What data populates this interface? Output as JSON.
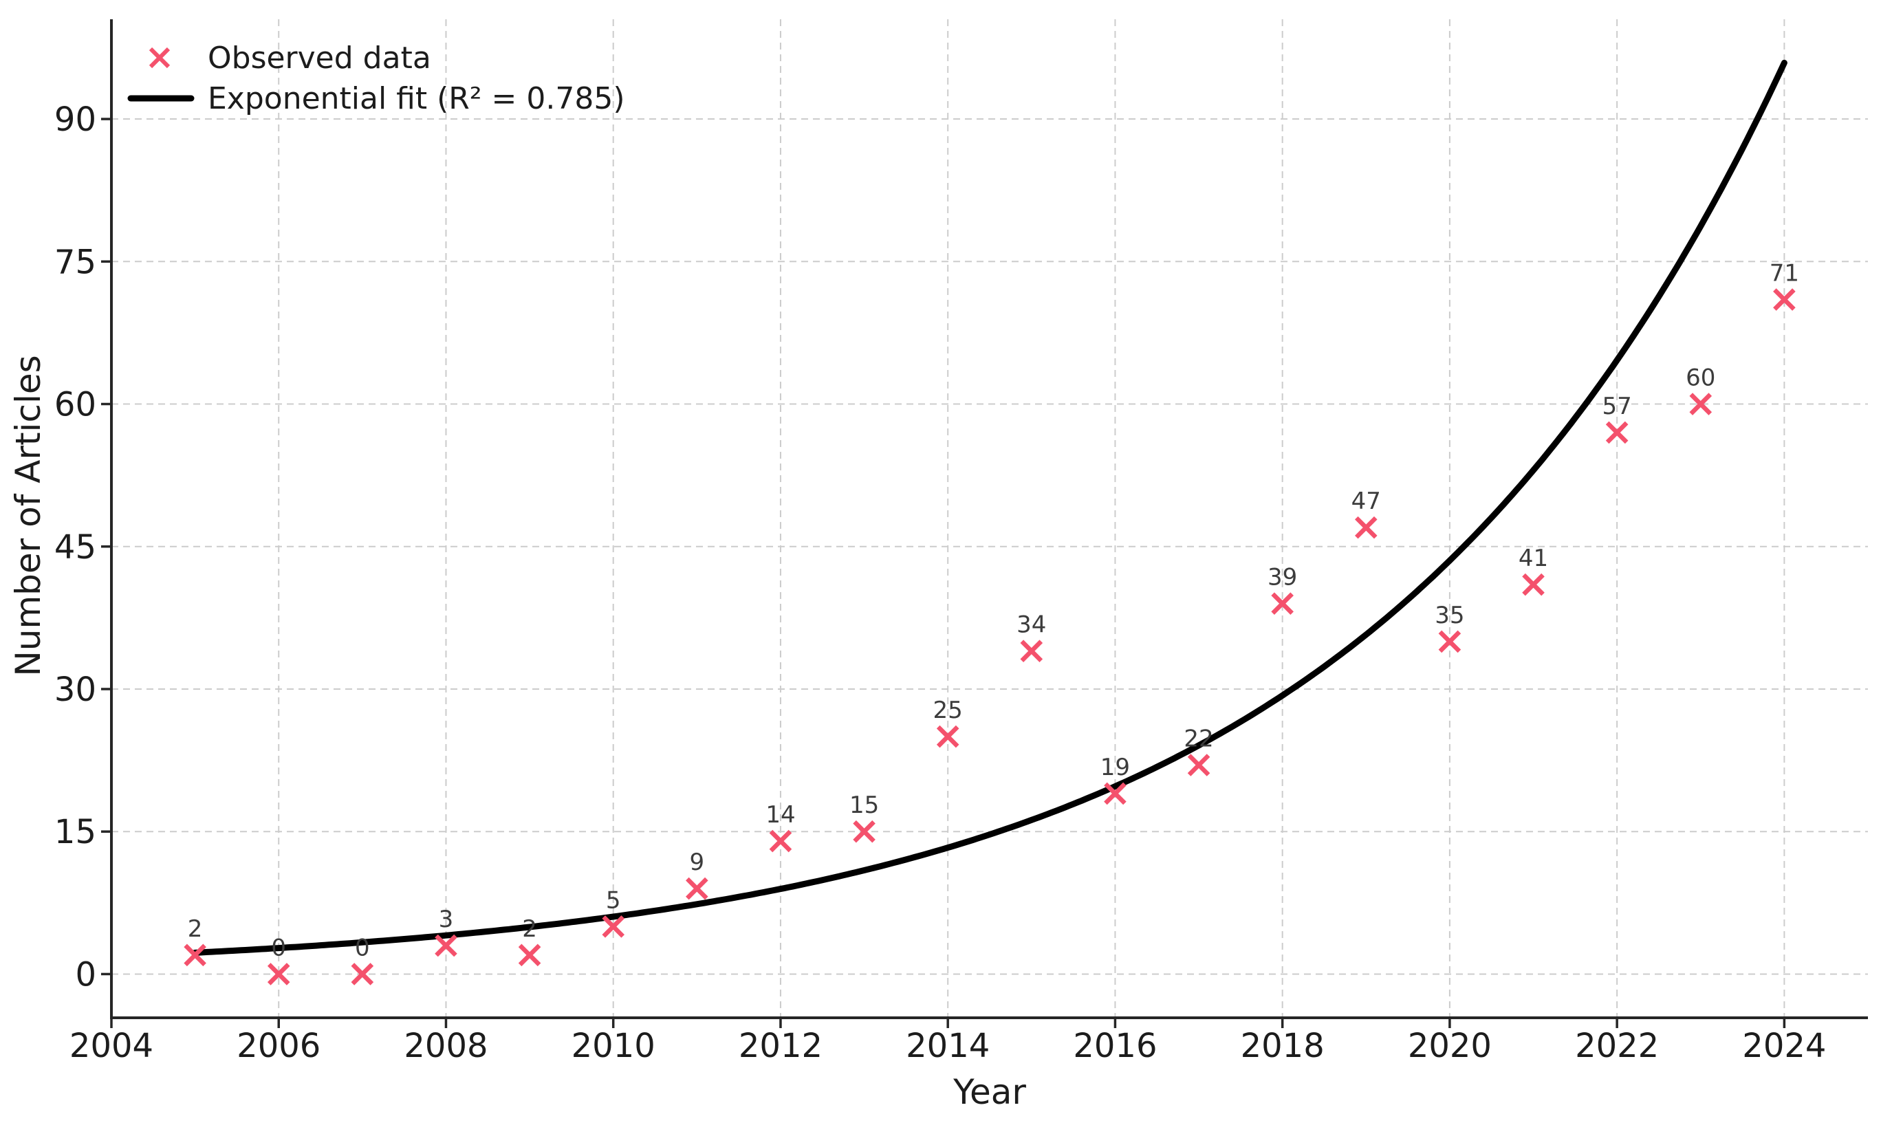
{
  "figure": {
    "background": "#ffffff"
  },
  "chart_data": {
    "type": "scatter",
    "title": "",
    "xlabel": "Year",
    "ylabel": "Number of Articles",
    "grid": true,
    "legend_position": "upper-left",
    "xlim": [
      2004,
      2025
    ],
    "ylim": [
      -4.6,
      100.5
    ],
    "xticks": [
      2004,
      2006,
      2008,
      2010,
      2012,
      2014,
      2016,
      2018,
      2020,
      2022,
      2024
    ],
    "yticks": [
      0,
      15,
      30,
      45,
      60,
      75,
      90
    ],
    "series": [
      {
        "name": "Observed data",
        "kind": "scatter",
        "marker": "x",
        "color": "#f4516c",
        "x": [
          2005,
          2006,
          2007,
          2008,
          2009,
          2010,
          2011,
          2012,
          2013,
          2014,
          2015,
          2016,
          2017,
          2018,
          2019,
          2020,
          2021,
          2022,
          2023,
          2024
        ],
        "y": [
          2,
          0,
          0,
          3,
          2,
          5,
          9,
          14,
          15,
          25,
          34,
          19,
          22,
          39,
          47,
          35,
          41,
          57,
          60,
          71
        ],
        "point_labels": [
          "2",
          "0",
          "0",
          "3",
          "2",
          "5",
          "9",
          "14",
          "15",
          "25",
          "34",
          "19",
          "22",
          "39",
          "47",
          "35",
          "41",
          "57",
          "60",
          "71"
        ]
      },
      {
        "name": "Exponential fit (R² = 0.785)",
        "kind": "line",
        "color": "#000000",
        "r_squared": 0.785,
        "a": 2.25,
        "b": 0.1975,
        "x_start": 2005,
        "x_end": 2024
      }
    ],
    "colors": {
      "grid": "#cccccc",
      "spine": "#262626",
      "tick_label": "#1c1c1c",
      "axis_label": "#1c1c1c",
      "point_label": "#3c3c3c"
    }
  }
}
